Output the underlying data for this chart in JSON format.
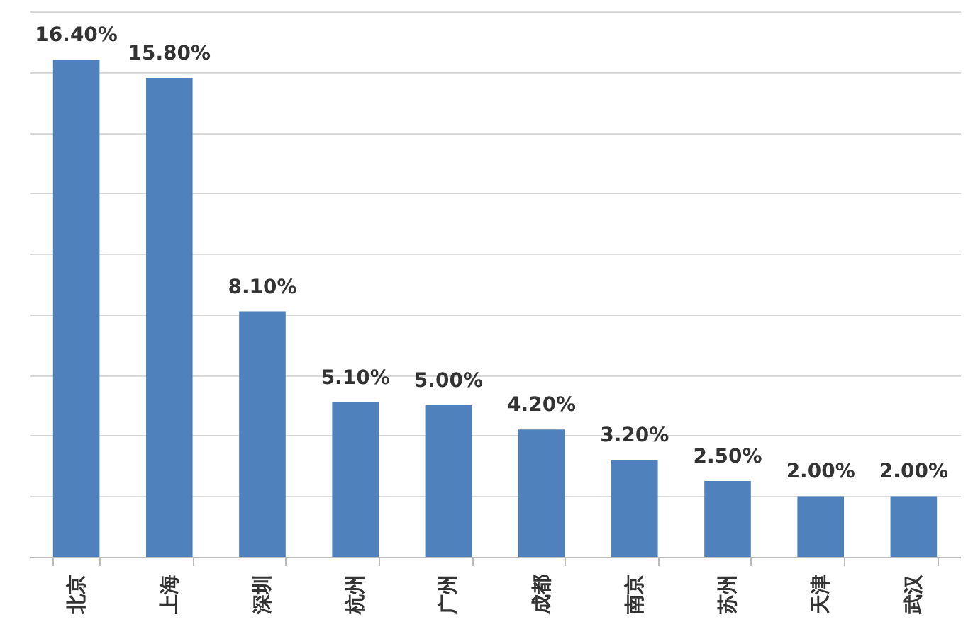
{
  "chart_data": {
    "type": "bar",
    "categories": [
      "北京",
      "上海",
      "深圳",
      "杭州",
      "广州",
      "成都",
      "南京",
      "苏州",
      "天津",
      "武汉"
    ],
    "values": [
      16.4,
      15.8,
      8.1,
      5.1,
      5.0,
      4.2,
      3.2,
      2.5,
      2.0,
      2.0
    ],
    "value_labels": [
      "16.40%",
      "15.80%",
      "8.10%",
      "5.10%",
      "5.00%",
      "4.20%",
      "3.20%",
      "2.50%",
      "2.00%",
      "2.00%"
    ],
    "color": "#4f81bd",
    "ylim": [
      0,
      18
    ],
    "yticks": [
      {
        "value": 0,
        "label": null
      },
      {
        "value": 2,
        "label": null
      },
      {
        "value": 4,
        "label": null
      },
      {
        "value": 6,
        "label": null
      },
      {
        "value": 8,
        "label": null
      },
      {
        "value": 10,
        "label": null
      },
      {
        "value": 12,
        "label": null
      },
      {
        "value": 14,
        "label": null
      },
      {
        "value": 16,
        "label": null
      },
      {
        "value": 18,
        "label": null
      }
    ],
    "grid": true,
    "tick_labels": "x"
  }
}
